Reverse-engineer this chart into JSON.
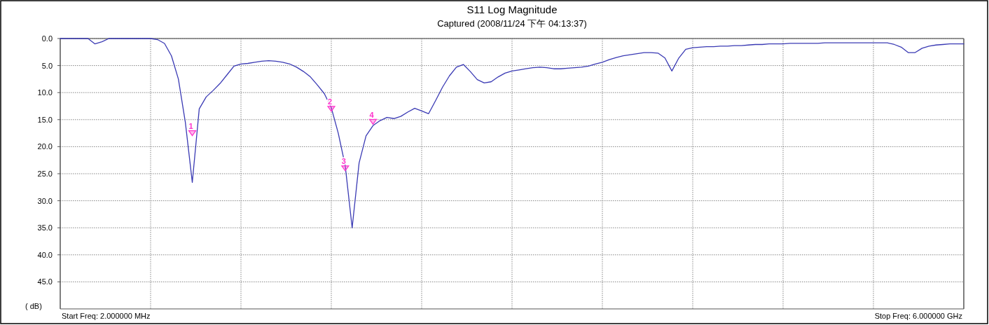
{
  "chart_data": {
    "type": "line",
    "title": "S11 Log Magnitude",
    "subtitle": "Captured  (2008/11/24 下午 04:13:37)",
    "ylabel": "( dB)",
    "categories": [
      null,
      null,
      null,
      null,
      null,
      null,
      null,
      null,
      null,
      null,
      null,
      null,
      null,
      null,
      null,
      null,
      null,
      null,
      null,
      null,
      null,
      null,
      null,
      null,
      null,
      null,
      null,
      null,
      null,
      null,
      null,
      null,
      null,
      null,
      null,
      null,
      null,
      null,
      null,
      null,
      null,
      null,
      null,
      null,
      null,
      null,
      null,
      null,
      null,
      null,
      null,
      null,
      null,
      null,
      null,
      null,
      null,
      null,
      null,
      null,
      null,
      null,
      null,
      null,
      null,
      null,
      null,
      null,
      null,
      null,
      null,
      null,
      null,
      null,
      null,
      null,
      null,
      null,
      null,
      null,
      null,
      null,
      null,
      null,
      null,
      null,
      null,
      null,
      null,
      null,
      null,
      null,
      null,
      null,
      null,
      null,
      null,
      null,
      null,
      null,
      null,
      null,
      null,
      null,
      null,
      null,
      null,
      null,
      null,
      null,
      null,
      null,
      null,
      null,
      null,
      null,
      null,
      null,
      null,
      null,
      null,
      null,
      null,
      null,
      null,
      null,
      null,
      null,
      null,
      null,
      null
    ],
    "series": [
      {
        "color": "#3a3ab4",
        "values": [
          0,
          0,
          0,
          0,
          0,
          1.0,
          0.6,
          0,
          0,
          0,
          0,
          0,
          0,
          0,
          0.2,
          0.9,
          3.2,
          7.5,
          15.5,
          26.6,
          13.0,
          10.8,
          9.6,
          8.3,
          6.7,
          5.1,
          4.7,
          4.6,
          4.4,
          4.2,
          4.1,
          4.2,
          4.4,
          4.7,
          5.3,
          6.1,
          7.1,
          8.6,
          10.2,
          12.8,
          17.5,
          23.5,
          35.0,
          23.0,
          18.0,
          16.1,
          15.2,
          14.6,
          14.8,
          14.4,
          13.6,
          12.9,
          13.4,
          13.9,
          11.5,
          9.0,
          6.9,
          5.3,
          4.8,
          6.1,
          7.6,
          8.2,
          8.0,
          7.1,
          6.4,
          6.0,
          5.8,
          5.6,
          5.4,
          5.3,
          5.4,
          5.6,
          5.6,
          5.5,
          5.4,
          5.3,
          5.1,
          4.7,
          4.4,
          3.9,
          3.5,
          3.2,
          3.0,
          2.8,
          2.6,
          2.6,
          2.7,
          3.6,
          6.0,
          3.6,
          2.0,
          1.7,
          1.6,
          1.5,
          1.5,
          1.4,
          1.4,
          1.3,
          1.3,
          1.2,
          1.1,
          1.1,
          1.0,
          1.0,
          1.0,
          0.9,
          0.9,
          0.9,
          0.9,
          0.9,
          0.8,
          0.8,
          0.8,
          0.8,
          0.8,
          0.8,
          0.8,
          0.8,
          0.8,
          0.8,
          1.1,
          1.6,
          2.6,
          2.6,
          1.8,
          1.4,
          1.2,
          1.1,
          1.0,
          1.0,
          1.0
        ]
      },
      {
        "type": "scatter",
        "name": "1",
        "color": "#ff33cc",
        "marker": "triangle",
        "values": [
          null,
          null,
          null,
          null,
          null,
          null,
          null,
          null,
          null,
          null,
          null,
          null,
          null,
          null,
          null,
          null,
          null,
          null,
          null,
          17.5,
          null,
          null,
          null,
          null,
          null,
          null,
          null,
          null,
          null,
          null,
          null,
          null,
          null,
          null,
          null,
          null,
          null,
          null,
          null,
          null,
          null,
          null,
          null,
          null,
          null,
          null,
          null,
          null,
          null,
          null,
          null,
          null,
          null,
          null,
          null,
          null,
          null,
          null,
          null,
          null,
          null,
          null,
          null,
          null,
          null,
          null,
          null,
          null,
          null,
          null,
          null,
          null,
          null,
          null,
          null,
          null,
          null,
          null,
          null,
          null,
          null,
          null,
          null,
          null,
          null,
          null,
          null,
          null,
          null,
          null,
          null,
          null,
          null,
          null,
          null,
          null,
          null,
          null,
          null,
          null,
          null,
          null,
          null,
          null,
          null,
          null,
          null,
          null,
          null,
          null,
          null,
          null,
          null,
          null,
          null,
          null,
          null,
          null,
          null,
          null,
          null,
          null,
          null,
          null,
          null,
          null,
          null,
          null,
          null,
          null,
          null
        ]
      },
      {
        "type": "scatter",
        "name": "2",
        "color": "#ff33cc",
        "marker": "triangle",
        "values": [
          null,
          null,
          null,
          null,
          null,
          null,
          null,
          null,
          null,
          null,
          null,
          null,
          null,
          null,
          null,
          null,
          null,
          null,
          null,
          null,
          null,
          null,
          null,
          null,
          null,
          null,
          null,
          null,
          null,
          null,
          null,
          null,
          null,
          null,
          null,
          null,
          null,
          null,
          null,
          13.0,
          null,
          null,
          null,
          null,
          null,
          null,
          null,
          null,
          null,
          null,
          null,
          null,
          null,
          null,
          null,
          null,
          null,
          null,
          null,
          null,
          null,
          null,
          null,
          null,
          null,
          null,
          null,
          null,
          null,
          null,
          null,
          null,
          null,
          null,
          null,
          null,
          null,
          null,
          null,
          null,
          null,
          null,
          null,
          null,
          null,
          null,
          null,
          null,
          null,
          null,
          null,
          null,
          null,
          null,
          null,
          null,
          null,
          null,
          null,
          null,
          null,
          null,
          null,
          null,
          null,
          null,
          null,
          null,
          null,
          null,
          null,
          null,
          null,
          null,
          null,
          null,
          null,
          null,
          null,
          null,
          null,
          null,
          null,
          null,
          null,
          null,
          null,
          null,
          null,
          null,
          null
        ]
      },
      {
        "type": "scatter",
        "name": "3",
        "color": "#ff33cc",
        "marker": "triangle",
        "values": [
          null,
          null,
          null,
          null,
          null,
          null,
          null,
          null,
          null,
          null,
          null,
          null,
          null,
          null,
          null,
          null,
          null,
          null,
          null,
          null,
          null,
          null,
          null,
          null,
          null,
          null,
          null,
          null,
          null,
          null,
          null,
          null,
          null,
          null,
          null,
          null,
          null,
          null,
          null,
          null,
          null,
          24.0,
          null,
          null,
          null,
          null,
          null,
          null,
          null,
          null,
          null,
          null,
          null,
          null,
          null,
          null,
          null,
          null,
          null,
          null,
          null,
          null,
          null,
          null,
          null,
          null,
          null,
          null,
          null,
          null,
          null,
          null,
          null,
          null,
          null,
          null,
          null,
          null,
          null,
          null,
          null,
          null,
          null,
          null,
          null,
          null,
          null,
          null,
          null,
          null,
          null,
          null,
          null,
          null,
          null,
          null,
          null,
          null,
          null,
          null,
          null,
          null,
          null,
          null,
          null,
          null,
          null,
          null,
          null,
          null,
          null,
          null,
          null,
          null,
          null,
          null,
          null,
          null,
          null,
          null,
          null,
          null,
          null,
          null,
          null,
          null,
          null,
          null,
          null,
          null,
          null
        ]
      },
      {
        "type": "scatter",
        "name": "4",
        "color": "#ff33cc",
        "marker": "triangle",
        "values": [
          null,
          null,
          null,
          null,
          null,
          null,
          null,
          null,
          null,
          null,
          null,
          null,
          null,
          null,
          null,
          null,
          null,
          null,
          null,
          null,
          null,
          null,
          null,
          null,
          null,
          null,
          null,
          null,
          null,
          null,
          null,
          null,
          null,
          null,
          null,
          null,
          null,
          null,
          null,
          null,
          null,
          null,
          null,
          null,
          null,
          15.4,
          null,
          null,
          null,
          null,
          null,
          null,
          null,
          null,
          null,
          null,
          null,
          null,
          null,
          null,
          null,
          null,
          null,
          null,
          null,
          null,
          null,
          null,
          null,
          null,
          null,
          null,
          null,
          null,
          null,
          null,
          null,
          null,
          null,
          null,
          null,
          null,
          null,
          null,
          null,
          null,
          null,
          null,
          null,
          null,
          null,
          null,
          null,
          null,
          null,
          null,
          null,
          null,
          null,
          null,
          null,
          null,
          null,
          null,
          null,
          null,
          null,
          null,
          null,
          null,
          null,
          null,
          null,
          null,
          null,
          null,
          null,
          null,
          null,
          null,
          null,
          null,
          null,
          null,
          null,
          null,
          null,
          null,
          null,
          null,
          null
        ]
      }
    ],
    "ylim": [
      50,
      0
    ],
    "yticks": [
      {
        "value": 0,
        "label": "0.0"
      },
      {
        "value": 5,
        "label": "5.0"
      },
      {
        "value": 10,
        "label": "10.0"
      },
      {
        "value": 15,
        "label": "15.0"
      },
      {
        "value": 20,
        "label": "20.0"
      },
      {
        "value": 25,
        "label": "25.0"
      },
      {
        "value": 30,
        "label": "30.0"
      },
      {
        "value": 35,
        "label": "35.0"
      },
      {
        "value": 40,
        "label": "40.0"
      },
      {
        "value": 45,
        "label": "45.0"
      }
    ],
    "grid": true,
    "marker": "none",
    "line_style": "solid",
    "annotations": [
      "Start Freq: 2.000000 MHz",
      "Stop Freq: 6.000000 GHz"
    ]
  }
}
